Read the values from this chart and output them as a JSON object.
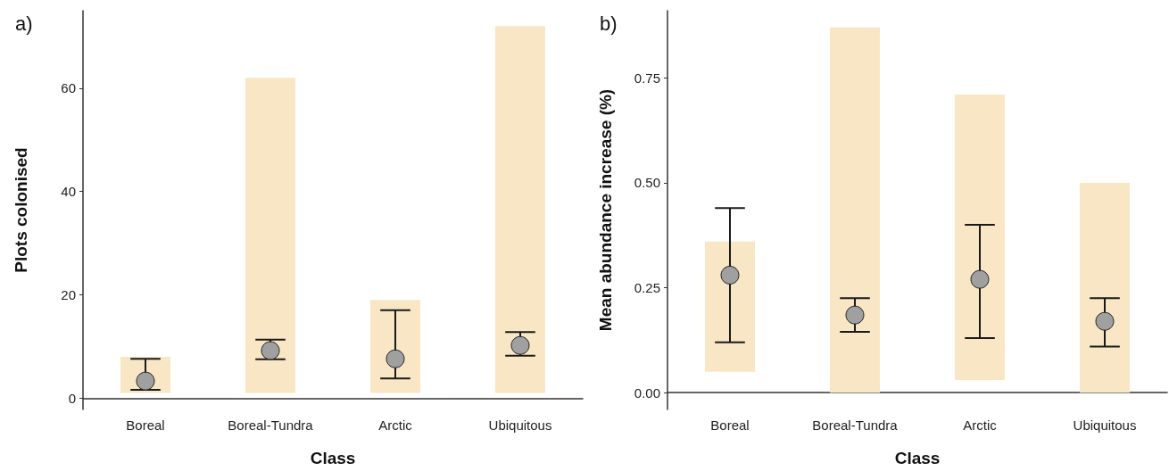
{
  "chart_data": [
    {
      "type": "scatter",
      "title": "a)",
      "xlabel": "Class",
      "ylabel": "Plots colonised",
      "categories": [
        "Boreal",
        "Boreal-Tundra",
        "Arctic",
        "Ubiquitous"
      ],
      "series": [
        {
          "type": "bar",
          "color": "#f8e6c4",
          "base": [
            1,
            1,
            1,
            1
          ],
          "values": [
            7,
            61,
            18,
            71
          ]
        },
        {
          "color": "#a0a0a0",
          "marker": "circle",
          "values": [
            3.3,
            9.2,
            7.6,
            10.2
          ],
          "errors": [
            [
              1.6,
              7.6
            ],
            [
              7.5,
              11.3
            ],
            [
              3.8,
              17
            ],
            [
              8.2,
              12.8
            ]
          ]
        }
      ],
      "ylim": [
        -2.2,
        75
      ],
      "yticks": [
        0,
        20,
        40,
        60
      ],
      "grid": false
    },
    {
      "type": "scatter",
      "title": "b)",
      "xlabel": "Class",
      "ylabel": "Mean abundance increase (%)",
      "categories": [
        "Boreal",
        "Boreal-Tundra",
        "Arctic",
        "Ubiquitous"
      ],
      "series": [
        {
          "type": "bar",
          "color": "#f8e6c4",
          "base": [
            0.05,
            0,
            0.03,
            0
          ],
          "values": [
            0.31,
            0.87,
            0.68,
            0.5
          ]
        },
        {
          "color": "#a0a0a0",
          "marker": "circle",
          "values": [
            0.28,
            0.185,
            0.27,
            0.17
          ],
          "errors": [
            [
              0.12,
              0.44
            ],
            [
              0.145,
              0.225
            ],
            [
              0.13,
              0.4
            ],
            [
              0.11,
              0.225
            ]
          ]
        }
      ],
      "ylim": [
        -0.04,
        0.91
      ],
      "yticks": [
        {
          "value": 0,
          "label": "0.00"
        },
        {
          "value": 0.25,
          "label": "0.25"
        },
        {
          "value": 0.5,
          "label": "0.50"
        },
        {
          "value": 0.75,
          "label": "0.75"
        }
      ],
      "grid": false
    }
  ]
}
